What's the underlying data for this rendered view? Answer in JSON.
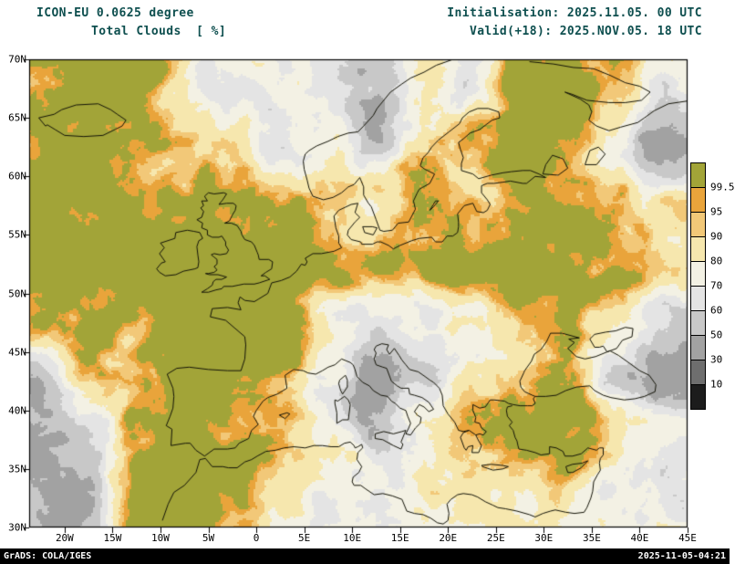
{
  "header": {
    "model_line": "ICON-EU 0.0625 degree",
    "variable_line": "Total Clouds  [ %]",
    "init_line": "Initialisation: 2025.11.05. 00 UTC",
    "valid_line": "Valid(+18): 2025.NOV.05. 18 UTC"
  },
  "footer": {
    "left": "GrADS: COLA/IGES",
    "right": "2025-11-05-04:21"
  },
  "colors": {
    "background": "#ffffff",
    "header_text": "#0e4f4f",
    "axis_text": "#000000",
    "frame": "#000000",
    "coastline": "#141408",
    "footer_bg": "#000000",
    "footer_text": "#ffffff"
  },
  "chart_data": {
    "type": "heatmap",
    "title": "Total Clouds [ %]",
    "model": "ICON-EU 0.0625 degree",
    "initialisation": "2025.11.05. 00 UTC",
    "valid": "2025.NOV.05. 18 UTC",
    "forecast_hour": "+18",
    "units": "%",
    "projection": "latlon",
    "lon_range": [
      -23.7,
      45
    ],
    "lat_range": [
      30,
      70
    ],
    "lat_ticks": [
      {
        "label": "70N",
        "value": 70
      },
      {
        "label": "65N",
        "value": 65
      },
      {
        "label": "60N",
        "value": 60
      },
      {
        "label": "55N",
        "value": 55
      },
      {
        "label": "50N",
        "value": 50
      },
      {
        "label": "45N",
        "value": 45
      },
      {
        "label": "40N",
        "value": 40
      },
      {
        "label": "35N",
        "value": 35
      },
      {
        "label": "30N",
        "value": 30
      }
    ],
    "lon_ticks": [
      {
        "label": "20W",
        "value": -20
      },
      {
        "label": "15W",
        "value": -15
      },
      {
        "label": "10W",
        "value": -10
      },
      {
        "label": "5W",
        "value": -5
      },
      {
        "label": "0",
        "value": 0
      },
      {
        "label": "5E",
        "value": 5
      },
      {
        "label": "10E",
        "value": 10
      },
      {
        "label": "15E",
        "value": 15
      },
      {
        "label": "20E",
        "value": 20
      },
      {
        "label": "25E",
        "value": 25
      },
      {
        "label": "30E",
        "value": 30
      },
      {
        "label": "35E",
        "value": 35
      },
      {
        "label": "40E",
        "value": 40
      },
      {
        "label": "45E",
        "value": 45
      }
    ],
    "colorbar": {
      "levels": [
        99.5,
        95,
        90,
        80,
        70,
        60,
        50,
        30,
        10
      ],
      "colors": [
        "#a2a438",
        "#e9a43b",
        "#f2c878",
        "#f6e7ae",
        "#f3f1e4",
        "#e4e4e4",
        "#c8c8c8",
        "#a2a2a2",
        "#6e6e6e",
        "#1c1c1c"
      ]
    },
    "grid": {
      "lons": [
        -22.5,
        -17.5,
        -12.5,
        -7.5,
        -2.5,
        2.5,
        7.5,
        12.5,
        17.5,
        22.5,
        27.5,
        32.5,
        37.5,
        42.5
      ],
      "lats": [
        67.5,
        62.5,
        57.5,
        52.5,
        47.5,
        42.5,
        37.5,
        32.5
      ],
      "values": [
        [
          100,
          100,
          97,
          75,
          65,
          55,
          70,
          55,
          80,
          60,
          98,
          100,
          85,
          65
        ],
        [
          97,
          100,
          99,
          97,
          85,
          60,
          70,
          55,
          85,
          97,
          100,
          98,
          70,
          50
        ],
        [
          100,
          96,
          100,
          100,
          100,
          98,
          85,
          72,
          88,
          96,
          99,
          100,
          97,
          80
        ],
        [
          99,
          100,
          100,
          100,
          100,
          100,
          99,
          97,
          99,
          100,
          99,
          98,
          96,
          85
        ],
        [
          93,
          97,
          100,
          100,
          100,
          100,
          65,
          48,
          65,
          80,
          88,
          85,
          70,
          55
        ],
        [
          55,
          90,
          98,
          100,
          99,
          97,
          68,
          45,
          50,
          70,
          85,
          95,
          60,
          35
        ],
        [
          45,
          60,
          90,
          99,
          97,
          92,
          70,
          55,
          65,
          80,
          85,
          95,
          80,
          60
        ],
        [
          50,
          55,
          95,
          98,
          90,
          75,
          65,
          55,
          70,
          78,
          70,
          80,
          72,
          70
        ]
      ]
    }
  }
}
